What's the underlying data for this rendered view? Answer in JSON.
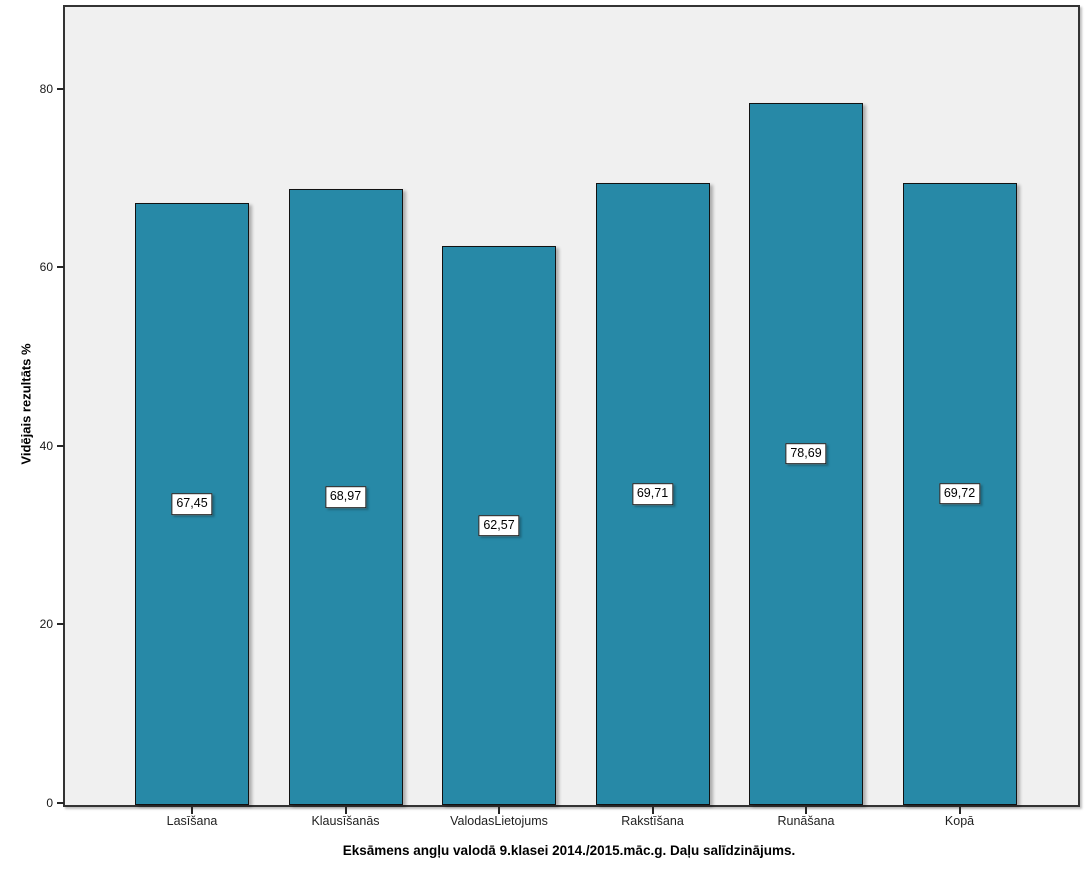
{
  "chart_data": {
    "type": "bar",
    "title": "Eksāmens angļu valodā 9.klasei 2014./2015.māc.g. Daļu salīdzinājums.",
    "ylabel": "Vidējais rezultāts %",
    "xlabel": "",
    "categories": [
      "Lasīšana",
      "Klausīšanās",
      "ValodasLietojums",
      "Rakstīšana",
      "Runāšana",
      "Kopā"
    ],
    "values": [
      67.45,
      68.97,
      62.57,
      69.71,
      78.69,
      69.72
    ],
    "value_labels": [
      "67,45",
      "68,97",
      "62,57",
      "69,71",
      "78,69",
      "69,72"
    ],
    "yticks": [
      0,
      20,
      40,
      60,
      80
    ],
    "ylim": [
      0,
      89.4
    ],
    "grid": false,
    "legend": "none",
    "colors": {
      "bar_fill": "#2789a7",
      "bar_border": "#121212",
      "plot_background": "#f0f0f0",
      "plot_border": "#333333",
      "value_label_background": "#ffffff",
      "text": "#000000"
    }
  }
}
